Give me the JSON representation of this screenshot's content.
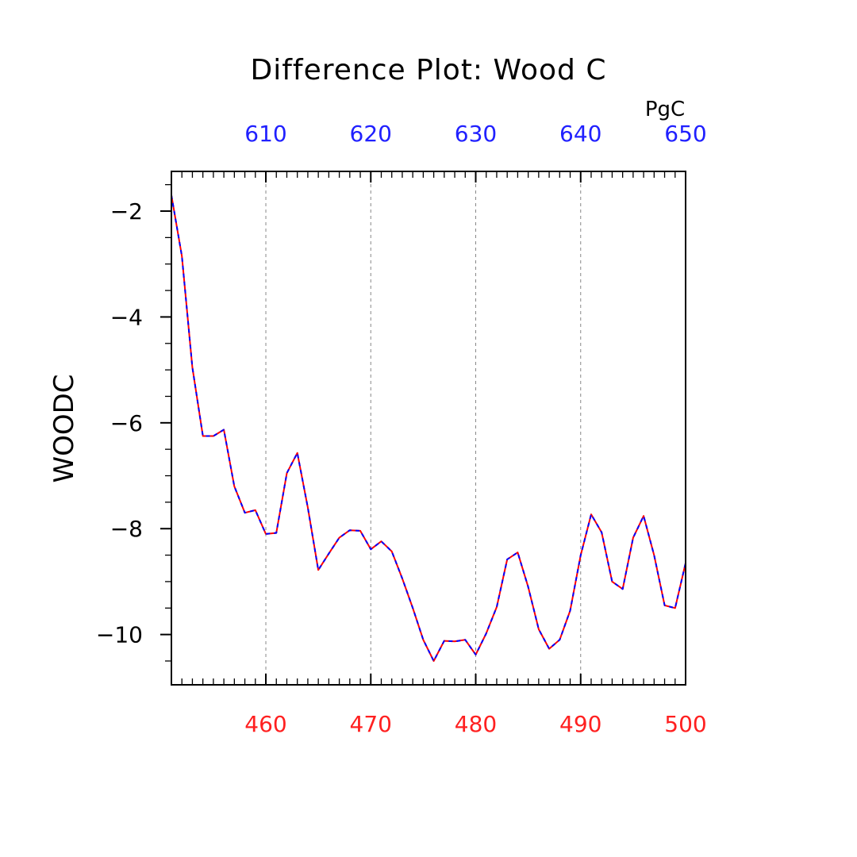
{
  "chart_data": {
    "type": "line",
    "title": "Difference Plot: Wood C",
    "ylabel": "WOODC",
    "top_axis_unit": "PgC",
    "colors": {
      "series_1": "#ff0000",
      "series_2": "#0000ff",
      "bottom_ticks": "#ff2020",
      "top_ticks": "#2020ff",
      "grid": "#888888"
    },
    "xlim": [
      451,
      500
    ],
    "ylim": [
      -10.95,
      -1.25
    ],
    "x_ticks": [
      460,
      470,
      480,
      490,
      500
    ],
    "x_tick_labels": [
      "460",
      "470",
      "480",
      "490",
      "500"
    ],
    "top_xlim": [
      601,
      650
    ],
    "top_x_ticks": [
      610,
      620,
      630,
      640,
      650
    ],
    "top_x_tick_labels": [
      "610",
      "620",
      "630",
      "640",
      "650"
    ],
    "y_ticks": [
      -2,
      -4,
      -6,
      -8,
      -10
    ],
    "y_tick_labels": [
      "−2",
      "−4",
      "−6",
      "−8",
      "−10"
    ],
    "grid": "vertical dashed at major x ticks",
    "legend": "none",
    "x": [
      451,
      452,
      453,
      454,
      455,
      456,
      457,
      458,
      459,
      460,
      461,
      462,
      463,
      464,
      465,
      466,
      467,
      468,
      469,
      470,
      471,
      472,
      473,
      474,
      475,
      476,
      477,
      478,
      479,
      480,
      481,
      482,
      483,
      484,
      485,
      486,
      487,
      488,
      489,
      490,
      491,
      492,
      493,
      494,
      495,
      496,
      497,
      498,
      499,
      500
    ],
    "series": [
      {
        "values": [
          -1.7,
          -2.85,
          -4.95,
          -6.25,
          -6.25,
          -6.13,
          -7.2,
          -7.7,
          -7.65,
          -8.1,
          -8.08,
          -6.95,
          -6.57,
          -7.6,
          -8.78,
          -8.47,
          -8.17,
          -8.03,
          -8.04,
          -8.39,
          -8.24,
          -8.43,
          -8.94,
          -9.5,
          -10.1,
          -10.5,
          -10.12,
          -10.13,
          -10.1,
          -10.38,
          -9.98,
          -9.48,
          -8.58,
          -8.45,
          -9.1,
          -9.9,
          -10.27,
          -10.1,
          -9.55,
          -8.5,
          -7.73,
          -8.07,
          -9.0,
          -9.14,
          -8.17,
          -7.76,
          -8.5,
          -9.45,
          -9.5,
          -8.65
        ]
      },
      {
        "values": [
          -1.7,
          -2.85,
          -4.95,
          -6.25,
          -6.25,
          -6.13,
          -7.2,
          -7.7,
          -7.65,
          -8.1,
          -8.08,
          -6.95,
          -6.57,
          -7.6,
          -8.78,
          -8.47,
          -8.17,
          -8.03,
          -8.04,
          -8.39,
          -8.24,
          -8.43,
          -8.94,
          -9.5,
          -10.1,
          -10.5,
          -10.12,
          -10.13,
          -10.1,
          -10.38,
          -9.98,
          -9.48,
          -8.58,
          -8.45,
          -9.1,
          -9.9,
          -10.27,
          -10.1,
          -9.55,
          -8.5,
          -7.73,
          -8.07,
          -9.0,
          -9.14,
          -8.17,
          -7.76,
          -8.5,
          -9.45,
          -9.5,
          -8.65
        ]
      }
    ]
  }
}
